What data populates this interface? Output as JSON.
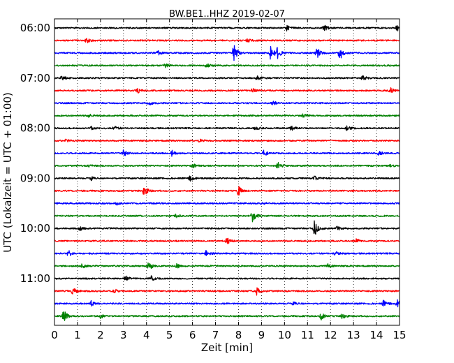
{
  "chart_data": {
    "type": "line",
    "title": "BW.BE1..HHZ 2019-02-07",
    "xlabel": "Zeit  [min]",
    "ylabel": "UTC (Lokalzeit = UTC + 01:00)",
    "xlim": [
      0,
      15
    ],
    "x_ticks": [
      0,
      1,
      2,
      3,
      4,
      5,
      6,
      7,
      8,
      9,
      10,
      11,
      12,
      13,
      14,
      15
    ],
    "y_tick_labels": [
      "06:00",
      "07:00",
      "08:00",
      "09:00",
      "10:00",
      "11:00"
    ],
    "grid": "vertical dotted",
    "trace_interval_min": 15,
    "color_cycle": [
      "#000000",
      "#ff0000",
      "#0000ff",
      "#008000"
    ],
    "traces": [
      {
        "start": "06:00",
        "events": [
          [
            10.1,
            4
          ],
          [
            11.7,
            5
          ],
          [
            14.9,
            6
          ]
        ]
      },
      {
        "start": "06:15",
        "events": [
          [
            1.4,
            5
          ],
          [
            8.4,
            3
          ]
        ]
      },
      {
        "start": "06:30",
        "events": [
          [
            7.8,
            14
          ],
          [
            9.4,
            12
          ],
          [
            9.7,
            8
          ],
          [
            11.4,
            8
          ],
          [
            12.4,
            12
          ],
          [
            4.5,
            3
          ]
        ]
      },
      {
        "start": "06:45",
        "events": [
          [
            4.8,
            3
          ],
          [
            6.6,
            3
          ]
        ]
      },
      {
        "start": "07:00",
        "events": [
          [
            0.3,
            4
          ],
          [
            8.8,
            4
          ],
          [
            13.4,
            4
          ]
        ]
      },
      {
        "start": "07:15",
        "events": [
          [
            3.6,
            4
          ],
          [
            8.6,
            3
          ],
          [
            14.6,
            4
          ]
        ]
      },
      {
        "start": "07:30",
        "events": [
          [
            4.1,
            3
          ],
          [
            9.5,
            3
          ]
        ]
      },
      {
        "start": "07:45",
        "events": [
          [
            1.5,
            2
          ],
          [
            10.8,
            2
          ]
        ]
      },
      {
        "start": "08:00",
        "events": [
          [
            1.6,
            2
          ],
          [
            2.6,
            3
          ],
          [
            8.7,
            3
          ],
          [
            10.3,
            3
          ],
          [
            12.7,
            3
          ]
        ]
      },
      {
        "start": "08:15",
        "events": [
          [
            0.5,
            2
          ],
          [
            6.3,
            2
          ]
        ]
      },
      {
        "start": "08:30",
        "events": [
          [
            3.0,
            5
          ],
          [
            5.1,
            4
          ],
          [
            9.1,
            5
          ],
          [
            14.1,
            3
          ]
        ]
      },
      {
        "start": "08:45",
        "events": [
          [
            1.5,
            2
          ],
          [
            6.0,
            3
          ],
          [
            9.7,
            5
          ],
          [
            14.6,
            2
          ]
        ]
      },
      {
        "start": "09:00",
        "events": [
          [
            1.6,
            3
          ],
          [
            5.9,
            4
          ],
          [
            11.3,
            3
          ]
        ]
      },
      {
        "start": "09:15",
        "events": [
          [
            3.9,
            8
          ],
          [
            8.0,
            7
          ]
        ]
      },
      {
        "start": "09:30",
        "events": [
          [
            2.7,
            2
          ],
          [
            9.0,
            2
          ]
        ]
      },
      {
        "start": "09:45",
        "events": [
          [
            5.3,
            3
          ],
          [
            8.6,
            9
          ]
        ]
      },
      {
        "start": "10:00",
        "events": [
          [
            1.1,
            3
          ],
          [
            11.3,
            12
          ],
          [
            12.3,
            3
          ]
        ]
      },
      {
        "start": "10:15",
        "events": [
          [
            7.5,
            5
          ],
          [
            13.1,
            3
          ]
        ]
      },
      {
        "start": "10:30",
        "events": [
          [
            0.6,
            5
          ],
          [
            6.6,
            4
          ],
          [
            12.2,
            4
          ]
        ]
      },
      {
        "start": "10:45",
        "events": [
          [
            1.2,
            3
          ],
          [
            4.1,
            6
          ],
          [
            5.3,
            4
          ],
          [
            11.9,
            3
          ]
        ]
      },
      {
        "start": "11:00",
        "events": [
          [
            3.1,
            4
          ],
          [
            4.2,
            4
          ]
        ]
      },
      {
        "start": "11:15",
        "events": [
          [
            0.8,
            5
          ],
          [
            2.6,
            3
          ],
          [
            8.8,
            6
          ]
        ]
      },
      {
        "start": "11:30",
        "events": [
          [
            1.6,
            4
          ],
          [
            10.4,
            3
          ],
          [
            14.3,
            4
          ],
          [
            14.9,
            5
          ]
        ]
      },
      {
        "start": "11:45",
        "events": [
          [
            0.4,
            9
          ],
          [
            2.0,
            3
          ],
          [
            11.6,
            5
          ],
          [
            12.5,
            4
          ]
        ]
      }
    ]
  }
}
